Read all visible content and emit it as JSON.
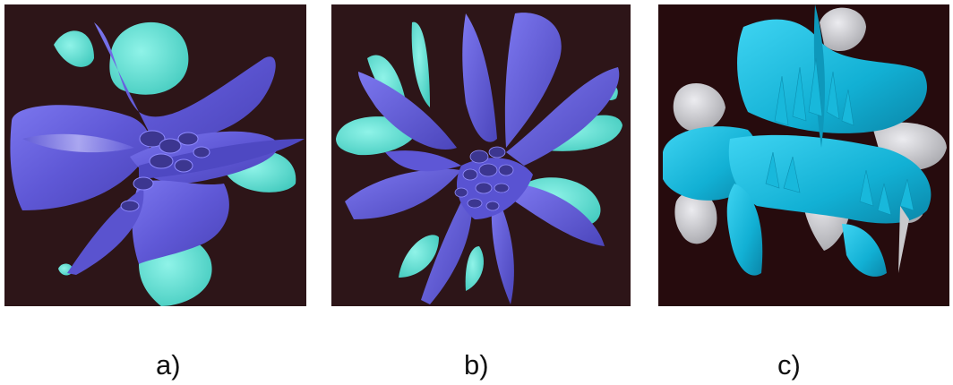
{
  "figure": {
    "panels": [
      {
        "label": "a)"
      },
      {
        "label": "b)"
      },
      {
        "label": "c)"
      }
    ]
  },
  "colors": {
    "background": "#2d1518",
    "background_c": "#260b0d",
    "violet_surface": "#6a64e0",
    "violet_dark": "#4a43b8",
    "cyan_surface": "#5ee3d6",
    "blue_surface": "#14b4d6",
    "grey_surface": "#c9c9cc"
  }
}
